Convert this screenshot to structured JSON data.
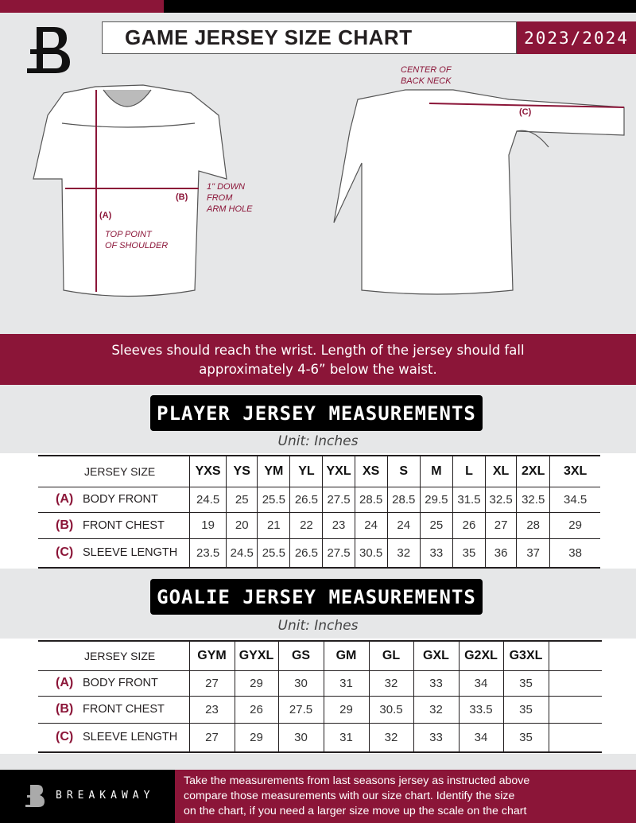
{
  "header": {
    "title": "GAME JERSEY SIZE CHART",
    "season": "2023/2024",
    "logo_letter": "B"
  },
  "diagram": {
    "center_back_neck": [
      "CENTER OF",
      "BACK NECK"
    ],
    "label_a": "(A)",
    "label_b": "(B)",
    "label_c": "(C)",
    "down_from_arm": [
      "1\" DOWN",
      "FROM",
      "ARM HOLE"
    ],
    "top_shoulder": [
      "TOP POINT",
      "OF SHOULDER"
    ]
  },
  "instructions": [
    "Sleeves should reach the wrist. Length of the jersey should fall",
    "approximately 4-6” below the waist."
  ],
  "player": {
    "title": "PLAYER JERSEY MEASUREMENTS",
    "unit": "Unit: Inches",
    "header_label": "JERSEY SIZE",
    "sizes": [
      "YXS",
      "YS",
      "YM",
      "YL",
      "YXL",
      "XS",
      "S",
      "M",
      "L",
      "XL",
      "2XL",
      "3XL"
    ],
    "rows": [
      {
        "letter": "(A)",
        "label": "BODY FRONT",
        "values": [
          "24.5",
          "25",
          "25.5",
          "26.5",
          "27.5",
          "28.5",
          "28.5",
          "29.5",
          "31.5",
          "32.5",
          "32.5",
          "34.5"
        ]
      },
      {
        "letter": "(B)",
        "label": "FRONT CHEST",
        "values": [
          "19",
          "20",
          "21",
          "22",
          "23",
          "24",
          "24",
          "25",
          "26",
          "27",
          "28",
          "29"
        ]
      },
      {
        "letter": "(C)",
        "label": "SLEEVE LENGTH",
        "values": [
          "23.5",
          "24.5",
          "25.5",
          "26.5",
          "27.5",
          "30.5",
          "32",
          "33",
          "35",
          "36",
          "37",
          "38"
        ]
      }
    ]
  },
  "goalie": {
    "title": "GOALIE JERSEY MEASUREMENTS",
    "unit": "Unit: Inches",
    "header_label": "JERSEY SIZE",
    "sizes": [
      "GYM",
      "GYXL",
      "GS",
      "GM",
      "GL",
      "GXL",
      "G2XL",
      "G3XL",
      ""
    ],
    "rows": [
      {
        "letter": "(A)",
        "label": "BODY FRONT",
        "values": [
          "27",
          "29",
          "30",
          "31",
          "32",
          "33",
          "34",
          "35",
          ""
        ]
      },
      {
        "letter": "(B)",
        "label": "FRONT CHEST",
        "values": [
          "23",
          "26",
          "27.5",
          "29",
          "30.5",
          "32",
          "33.5",
          "35",
          ""
        ]
      },
      {
        "letter": "(C)",
        "label": "SLEEVE LENGTH",
        "values": [
          "27",
          "29",
          "30",
          "31",
          "32",
          "33",
          "34",
          "35",
          ""
        ]
      }
    ]
  },
  "footer": {
    "brand": "BREAKAWAY",
    "text": [
      "Take the measurements from last seasons jersey as instructed above",
      "compare those measurements  with our size chart. Identify the size",
      "on the chart, if you need a larger size move up the scale on the chart"
    ]
  },
  "colors": {
    "accent": "#8b1538",
    "black": "#000000",
    "background": "#e6e7e8"
  }
}
